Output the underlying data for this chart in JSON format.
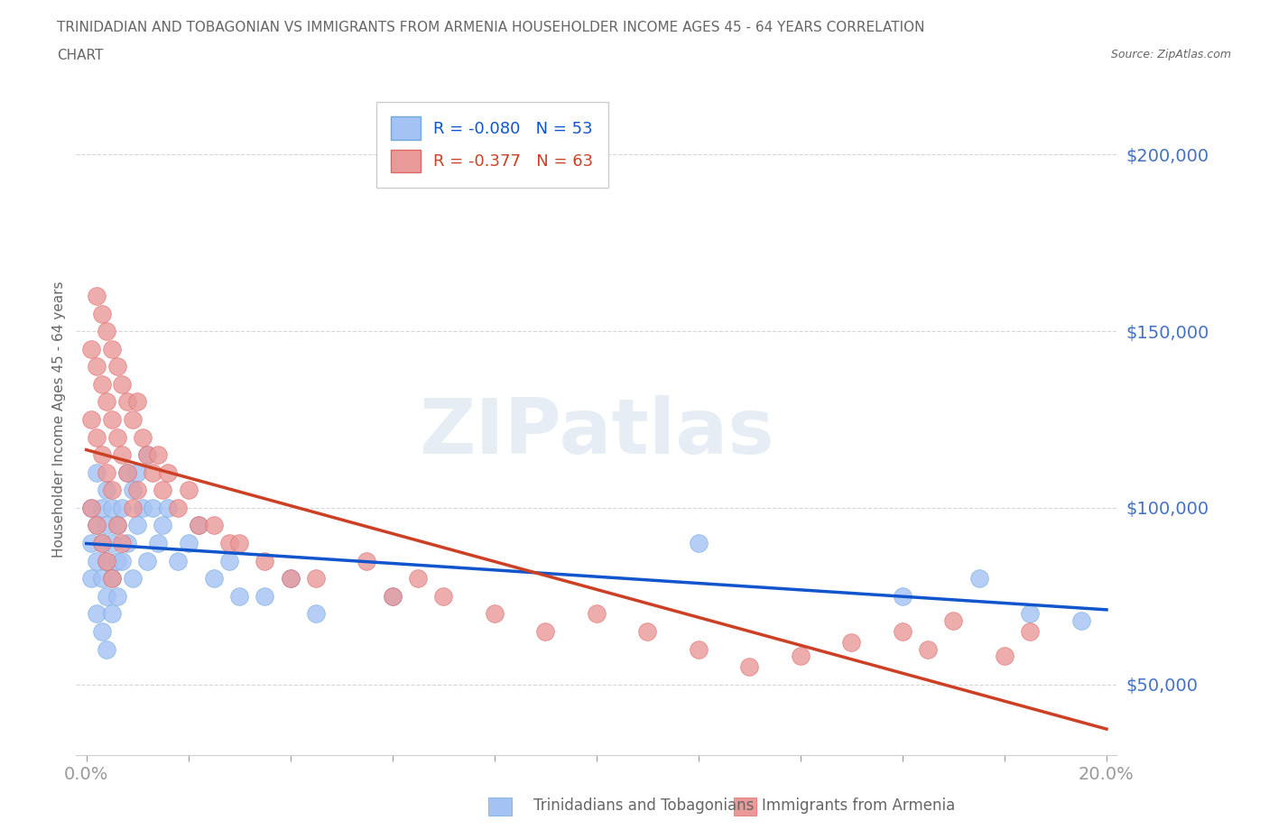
{
  "title_line1": "TRINIDADIAN AND TOBAGONIAN VS IMMIGRANTS FROM ARMENIA HOUSEHOLDER INCOME AGES 45 - 64 YEARS CORRELATION",
  "title_line2": "CHART",
  "source": "Source: ZipAtlas.com",
  "ylabel": "Householder Income Ages 45 - 64 years",
  "blue_R": -0.08,
  "blue_N": 53,
  "pink_R": -0.377,
  "pink_N": 63,
  "blue_label": "Trinidadians and Tobagonians",
  "pink_label": "Immigrants from Armenia",
  "xlim": [
    -0.002,
    0.202
  ],
  "ylim": [
    30000,
    220000
  ],
  "yticks": [
    50000,
    100000,
    150000,
    200000
  ],
  "ytick_labels": [
    "$50,000",
    "$100,000",
    "$150,000",
    "$200,000"
  ],
  "xtick_start_label": "0.0%",
  "xtick_end_label": "20.0%",
  "blue_color": "#a4c2f4",
  "blue_edge_color": "#6fa8dc",
  "pink_color": "#ea9999",
  "pink_edge_color": "#e06666",
  "blue_line_color": "#1155cc",
  "pink_line_color": "#cc4125",
  "grid_color": "#cccccc",
  "title_color": "#666666",
  "axis_label_color": "#666666",
  "tick_label_color": "#4472c4",
  "background_color": "#ffffff",
  "blue_scatter_x": [
    0.001,
    0.001,
    0.001,
    0.002,
    0.002,
    0.002,
    0.002,
    0.003,
    0.003,
    0.003,
    0.003,
    0.004,
    0.004,
    0.004,
    0.004,
    0.004,
    0.005,
    0.005,
    0.005,
    0.005,
    0.006,
    0.006,
    0.006,
    0.007,
    0.007,
    0.008,
    0.008,
    0.009,
    0.009,
    0.01,
    0.01,
    0.011,
    0.012,
    0.012,
    0.013,
    0.014,
    0.015,
    0.016,
    0.018,
    0.02,
    0.022,
    0.025,
    0.028,
    0.03,
    0.035,
    0.04,
    0.045,
    0.06,
    0.12,
    0.16,
    0.175,
    0.185,
    0.195
  ],
  "blue_scatter_y": [
    100000,
    90000,
    80000,
    110000,
    95000,
    85000,
    70000,
    100000,
    90000,
    80000,
    65000,
    105000,
    95000,
    85000,
    75000,
    60000,
    100000,
    90000,
    80000,
    70000,
    95000,
    85000,
    75000,
    100000,
    85000,
    110000,
    90000,
    105000,
    80000,
    110000,
    95000,
    100000,
    115000,
    85000,
    100000,
    90000,
    95000,
    100000,
    85000,
    90000,
    95000,
    80000,
    85000,
    75000,
    75000,
    80000,
    70000,
    75000,
    90000,
    75000,
    80000,
    70000,
    68000
  ],
  "pink_scatter_x": [
    0.001,
    0.001,
    0.001,
    0.002,
    0.002,
    0.002,
    0.002,
    0.003,
    0.003,
    0.003,
    0.003,
    0.004,
    0.004,
    0.004,
    0.004,
    0.005,
    0.005,
    0.005,
    0.005,
    0.006,
    0.006,
    0.006,
    0.007,
    0.007,
    0.007,
    0.008,
    0.008,
    0.009,
    0.009,
    0.01,
    0.01,
    0.011,
    0.012,
    0.013,
    0.014,
    0.015,
    0.016,
    0.018,
    0.02,
    0.022,
    0.025,
    0.028,
    0.03,
    0.035,
    0.04,
    0.045,
    0.055,
    0.06,
    0.065,
    0.07,
    0.08,
    0.09,
    0.1,
    0.11,
    0.12,
    0.13,
    0.14,
    0.15,
    0.16,
    0.165,
    0.17,
    0.18,
    0.185
  ],
  "pink_scatter_y": [
    145000,
    125000,
    100000,
    160000,
    140000,
    120000,
    95000,
    155000,
    135000,
    115000,
    90000,
    150000,
    130000,
    110000,
    85000,
    145000,
    125000,
    105000,
    80000,
    140000,
    120000,
    95000,
    135000,
    115000,
    90000,
    130000,
    110000,
    125000,
    100000,
    130000,
    105000,
    120000,
    115000,
    110000,
    115000,
    105000,
    110000,
    100000,
    105000,
    95000,
    95000,
    90000,
    90000,
    85000,
    80000,
    80000,
    85000,
    75000,
    80000,
    75000,
    70000,
    65000,
    70000,
    65000,
    60000,
    55000,
    58000,
    62000,
    65000,
    60000,
    68000,
    58000,
    65000
  ]
}
